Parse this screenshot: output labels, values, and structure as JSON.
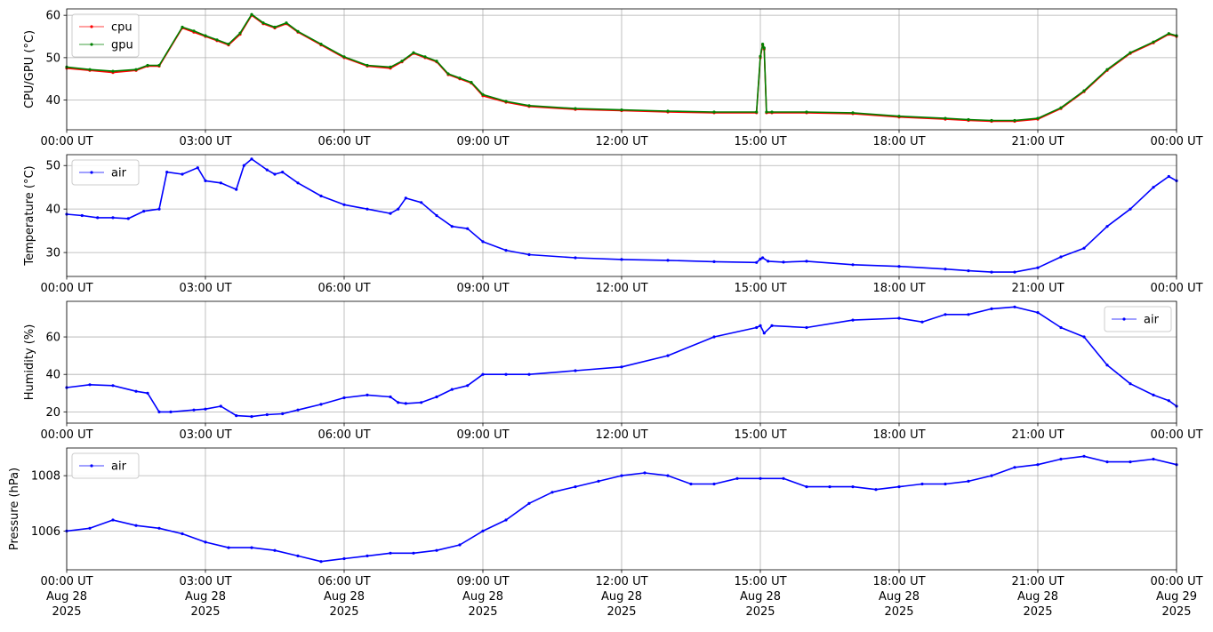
{
  "x_tick_labels": [
    "00:00 UT",
    "03:00 UT",
    "06:00 UT",
    "09:00 UT",
    "12:00 UT",
    "15:00 UT",
    "18:00 UT",
    "21:00 UT",
    "00:00 UT"
  ],
  "x_tick_dates": [
    "Aug 28",
    "Aug 28",
    "Aug 28",
    "Aug 28",
    "Aug 28",
    "Aug 28",
    "Aug 28",
    "Aug 28",
    "Aug 29"
  ],
  "x_tick_years": [
    "2025",
    "2025",
    "2025",
    "2025",
    "2025",
    "2025",
    "2025",
    "2025",
    "2025"
  ],
  "chart_data": [
    {
      "type": "line",
      "ylabel": "CPU/GPU (°C)",
      "xlabel": "",
      "xlim": [
        "2025-08-28 00:00",
        "2025-08-29 00:00"
      ],
      "ylim": [
        33,
        61.5
      ],
      "yticks": [
        40,
        50,
        60
      ],
      "grid": true,
      "legend_position": "top-left",
      "series": [
        {
          "name": "cpu",
          "color": "#ff0000",
          "x": [
            "00:00",
            "00:30",
            "01:00",
            "01:30",
            "01:45",
            "02:00",
            "02:30",
            "02:45",
            "03:00",
            "03:15",
            "03:30",
            "03:45",
            "04:00",
            "04:15",
            "04:30",
            "04:45",
            "05:00",
            "05:30",
            "06:00",
            "06:30",
            "07:00",
            "07:15",
            "07:30",
            "07:45",
            "08:00",
            "08:15",
            "08:30",
            "08:45",
            "09:00",
            "09:30",
            "10:00",
            "11:00",
            "12:00",
            "13:00",
            "14:00",
            "14:55",
            "15:00",
            "15:03",
            "15:05",
            "15:08",
            "15:15",
            "16:00",
            "17:00",
            "18:00",
            "19:00",
            "19:30",
            "20:00",
            "20:30",
            "21:00",
            "21:30",
            "22:00",
            "22:30",
            "23:00",
            "23:30",
            "23:50",
            "24:00"
          ],
          "y": [
            47.5,
            47,
            46.5,
            47,
            48,
            48,
            57,
            56,
            55,
            54,
            53,
            55.5,
            60,
            58,
            57,
            58,
            56,
            53,
            50,
            48,
            47.5,
            49,
            51,
            50,
            49,
            46,
            45,
            44,
            41,
            39.5,
            38.5,
            37.8,
            37.5,
            37.2,
            37,
            37,
            50,
            53,
            52,
            37,
            37,
            37,
            36.8,
            36,
            35.5,
            35.2,
            35,
            35,
            35.5,
            38,
            42,
            47,
            51,
            53.5,
            55.5,
            55
          ]
        },
        {
          "name": "gpu",
          "color": "#008000",
          "x": [
            "00:00",
            "00:30",
            "01:00",
            "01:30",
            "01:45",
            "02:00",
            "02:30",
            "02:45",
            "03:00",
            "03:15",
            "03:30",
            "03:45",
            "04:00",
            "04:15",
            "04:30",
            "04:45",
            "05:00",
            "05:30",
            "06:00",
            "06:30",
            "07:00",
            "07:15",
            "07:30",
            "07:45",
            "08:00",
            "08:15",
            "08:30",
            "08:45",
            "09:00",
            "09:30",
            "10:00",
            "11:00",
            "12:00",
            "13:00",
            "14:00",
            "14:55",
            "15:00",
            "15:03",
            "15:05",
            "15:08",
            "15:15",
            "16:00",
            "17:00",
            "18:00",
            "19:00",
            "19:30",
            "20:00",
            "20:30",
            "21:00",
            "21:30",
            "22:00",
            "22:30",
            "23:00",
            "23:30",
            "23:50",
            "24:00"
          ],
          "y": [
            47.8,
            47.2,
            46.8,
            47.2,
            48.2,
            48.2,
            57.2,
            56.3,
            55.2,
            54.2,
            53.2,
            55.8,
            60.2,
            58.2,
            57.2,
            58.2,
            56.2,
            53.2,
            50.2,
            48.2,
            47.8,
            49.2,
            51.2,
            50.2,
            49.2,
            46.2,
            45.2,
            44.2,
            41.3,
            39.7,
            38.7,
            38,
            37.7,
            37.4,
            37.2,
            37.2,
            50.3,
            53.2,
            52.3,
            37.2,
            37.2,
            37.2,
            37,
            36.2,
            35.7,
            35.4,
            35.2,
            35.2,
            35.7,
            38.2,
            42.2,
            47.2,
            51.2,
            53.7,
            55.7,
            55.2
          ]
        }
      ]
    },
    {
      "type": "line",
      "ylabel": "Temperature (°C)",
      "xlabel": "",
      "xlim": [
        "2025-08-28 00:00",
        "2025-08-29 00:00"
      ],
      "ylim": [
        24.5,
        52.5
      ],
      "yticks": [
        30,
        40,
        50
      ],
      "grid": true,
      "legend_position": "top-left",
      "series": [
        {
          "name": "air",
          "color": "#0000ff",
          "x": [
            "00:00",
            "00:20",
            "00:40",
            "01:00",
            "01:20",
            "01:40",
            "02:00",
            "02:10",
            "02:30",
            "02:50",
            "03:00",
            "03:20",
            "03:40",
            "03:50",
            "04:00",
            "04:20",
            "04:30",
            "04:40",
            "05:00",
            "05:30",
            "06:00",
            "06:30",
            "07:00",
            "07:10",
            "07:20",
            "07:40",
            "08:00",
            "08:20",
            "08:40",
            "09:00",
            "09:30",
            "10:00",
            "11:00",
            "12:00",
            "13:00",
            "14:00",
            "14:55",
            "15:00",
            "15:03",
            "15:10",
            "15:30",
            "16:00",
            "17:00",
            "18:00",
            "19:00",
            "19:30",
            "20:00",
            "20:30",
            "21:00",
            "21:30",
            "22:00",
            "22:30",
            "23:00",
            "23:30",
            "23:50",
            "24:00"
          ],
          "y": [
            38.8,
            38.5,
            38,
            38,
            37.8,
            39.5,
            40,
            48.5,
            48,
            49.5,
            46.5,
            46,
            44.5,
            50,
            51.5,
            49,
            48,
            48.5,
            46,
            43,
            41,
            40,
            39,
            40,
            42.5,
            41.5,
            38.5,
            36,
            35.5,
            32.5,
            30.5,
            29.5,
            28.8,
            28.4,
            28.2,
            27.9,
            27.7,
            28.5,
            28.8,
            28,
            27.8,
            28,
            27.2,
            26.8,
            26.2,
            25.8,
            25.5,
            25.5,
            26.5,
            29,
            31,
            36,
            40,
            45,
            47.5,
            46.5
          ]
        }
      ]
    },
    {
      "type": "line",
      "ylabel": "Humidity (%)",
      "xlabel": "",
      "xlim": [
        "2025-08-28 00:00",
        "2025-08-29 00:00"
      ],
      "ylim": [
        14,
        79
      ],
      "yticks": [
        20,
        40,
        60
      ],
      "grid": true,
      "legend_position": "top-right",
      "series": [
        {
          "name": "air",
          "color": "#0000ff",
          "x": [
            "00:00",
            "00:30",
            "01:00",
            "01:30",
            "01:45",
            "02:00",
            "02:15",
            "02:45",
            "03:00",
            "03:20",
            "03:40",
            "04:00",
            "04:20",
            "04:40",
            "05:00",
            "05:30",
            "06:00",
            "06:30",
            "07:00",
            "07:10",
            "07:20",
            "07:40",
            "08:00",
            "08:20",
            "08:40",
            "09:00",
            "09:30",
            "10:00",
            "11:00",
            "12:00",
            "13:00",
            "14:00",
            "14:55",
            "15:00",
            "15:05",
            "15:15",
            "16:00",
            "17:00",
            "18:00",
            "18:30",
            "19:00",
            "19:30",
            "20:00",
            "20:30",
            "21:00",
            "21:30",
            "22:00",
            "22:30",
            "23:00",
            "23:30",
            "23:50",
            "24:00"
          ],
          "y": [
            33,
            34.5,
            34,
            31,
            30,
            20,
            20,
            21,
            21.5,
            23,
            18,
            17.5,
            18.5,
            19,
            21,
            24,
            27.5,
            29,
            28,
            25,
            24.5,
            25,
            28,
            32,
            34,
            40,
            40,
            40,
            42,
            44,
            50,
            60,
            65,
            66,
            62,
            66,
            65,
            69,
            70,
            68,
            72,
            72,
            75,
            76,
            73,
            65,
            60,
            45,
            35,
            29,
            26,
            23
          ]
        }
      ]
    },
    {
      "type": "line",
      "ylabel": "Pressure (hPa)",
      "xlabel": "",
      "xlim": [
        "2025-08-28 00:00",
        "2025-08-29 00:00"
      ],
      "ylim": [
        1004.6,
        1009.0
      ],
      "yticks": [
        1006,
        1008
      ],
      "grid": true,
      "legend_position": "top-left",
      "series": [
        {
          "name": "air",
          "color": "#0000ff",
          "x": [
            "00:00",
            "00:30",
            "01:00",
            "01:30",
            "02:00",
            "02:30",
            "03:00",
            "03:30",
            "04:00",
            "04:30",
            "05:00",
            "05:30",
            "06:00",
            "06:30",
            "07:00",
            "07:30",
            "08:00",
            "08:30",
            "09:00",
            "09:30",
            "10:00",
            "10:30",
            "11:00",
            "11:30",
            "12:00",
            "12:30",
            "13:00",
            "13:30",
            "14:00",
            "14:30",
            "15:00",
            "15:30",
            "16:00",
            "16:30",
            "17:00",
            "17:30",
            "18:00",
            "18:30",
            "19:00",
            "19:30",
            "20:00",
            "20:30",
            "21:00",
            "21:30",
            "22:00",
            "22:30",
            "23:00",
            "23:30",
            "24:00"
          ],
          "y": [
            1006,
            1006.1,
            1006.4,
            1006.2,
            1006.1,
            1005.9,
            1005.6,
            1005.4,
            1005.4,
            1005.3,
            1005.1,
            1004.9,
            1005.0,
            1005.1,
            1005.2,
            1005.2,
            1005.3,
            1005.5,
            1006.0,
            1006.4,
            1007.0,
            1007.4,
            1007.6,
            1007.8,
            1008.0,
            1008.1,
            1008.0,
            1007.7,
            1007.7,
            1007.9,
            1007.9,
            1007.9,
            1007.6,
            1007.6,
            1007.6,
            1007.5,
            1007.6,
            1007.7,
            1007.7,
            1007.8,
            1008.0,
            1008.3,
            1008.4,
            1008.6,
            1008.7,
            1008.5,
            1008.5,
            1008.6,
            1008.4
          ]
        }
      ]
    }
  ]
}
